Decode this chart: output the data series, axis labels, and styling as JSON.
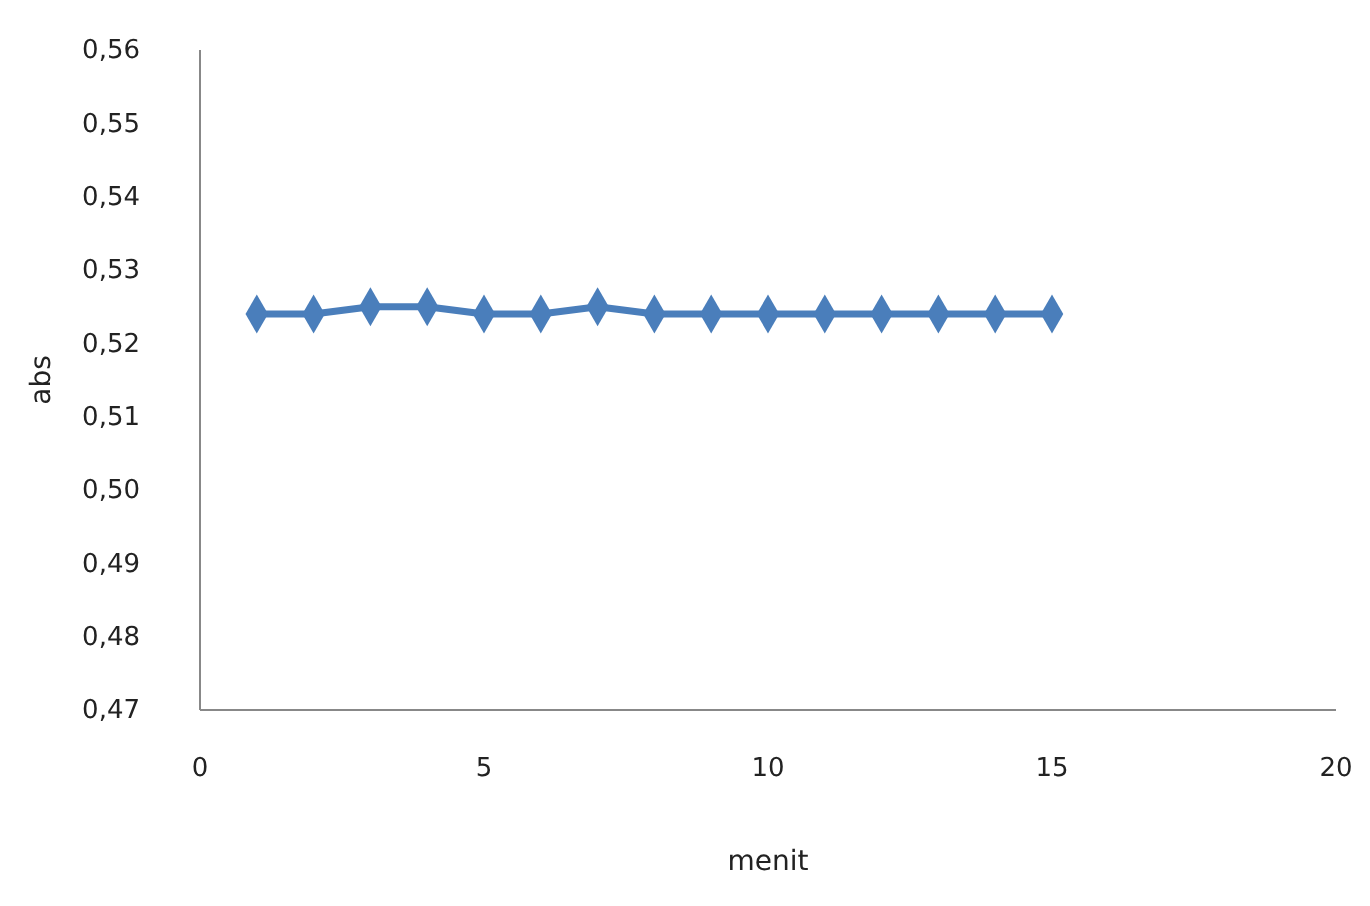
{
  "chart_data": {
    "type": "line",
    "xlabel": "menit",
    "ylabel": "abs",
    "x": [
      1,
      2,
      3,
      4,
      5,
      6,
      7,
      8,
      9,
      10,
      11,
      12,
      13,
      14,
      15
    ],
    "series": [
      {
        "color": "#4a7ebb",
        "values": [
          0.524,
          0.524,
          0.525,
          0.525,
          0.524,
          0.524,
          0.525,
          0.524,
          0.524,
          0.524,
          0.524,
          0.524,
          0.524,
          0.524,
          0.524
        ]
      }
    ],
    "xlim": [
      0,
      20
    ],
    "xticks": [
      0,
      5,
      10,
      15,
      20
    ],
    "ylim": [
      0.47,
      0.56
    ],
    "yticks": [
      {
        "value": 0.47,
        "label": "0,47"
      },
      {
        "value": 0.48,
        "label": "0,48"
      },
      {
        "value": 0.49,
        "label": "0,49"
      },
      {
        "value": 0.5,
        "label": "0,50"
      },
      {
        "value": 0.51,
        "label": "0,51"
      },
      {
        "value": 0.52,
        "label": "0,52"
      },
      {
        "value": 0.53,
        "label": "0,53"
      },
      {
        "value": 0.54,
        "label": "0,54"
      },
      {
        "value": 0.55,
        "label": "0,55"
      },
      {
        "value": 0.56,
        "label": "0,56"
      }
    ],
    "marker": "diamond",
    "grid": false
  }
}
